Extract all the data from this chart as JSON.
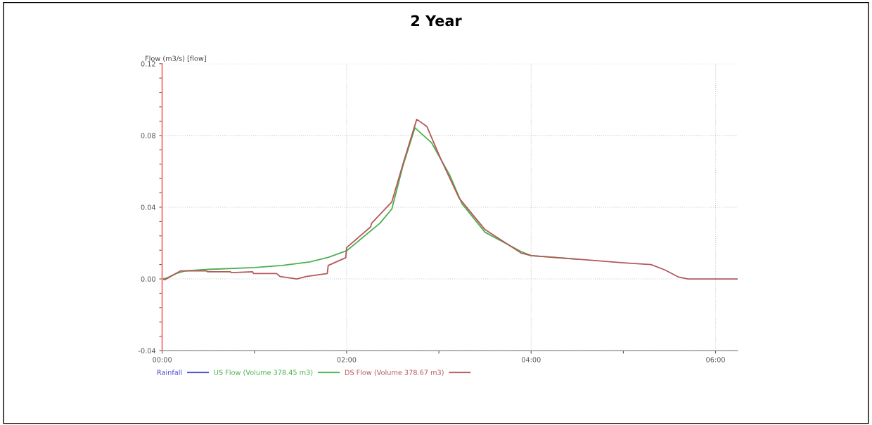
{
  "chart_data": {
    "type": "line",
    "title": "2 Year",
    "ylabel": "Flow (m3/s) [flow]",
    "xlim": [
      0,
      6.24
    ],
    "ylim": [
      -0.04,
      0.12
    ],
    "xticks": [
      {
        "value": 0,
        "label": "00:00"
      },
      {
        "value": 1,
        "label": null
      },
      {
        "value": 2,
        "label": "02:00"
      },
      {
        "value": 3,
        "label": null
      },
      {
        "value": 4,
        "label": "04:00"
      },
      {
        "value": 5,
        "label": null
      },
      {
        "value": 6,
        "label": "06:00"
      }
    ],
    "yticks": [
      {
        "value": -0.04,
        "label": "-0.04"
      },
      {
        "value": -0.032,
        "label": null
      },
      {
        "value": -0.024,
        "label": null
      },
      {
        "value": -0.016,
        "label": null
      },
      {
        "value": -0.008,
        "label": null
      },
      {
        "value": 0,
        "label": "0.00"
      },
      {
        "value": 0.008,
        "label": null
      },
      {
        "value": 0.016,
        "label": null
      },
      {
        "value": 0.024,
        "label": null
      },
      {
        "value": 0.032,
        "label": null
      },
      {
        "value": 0.04,
        "label": "0.04"
      },
      {
        "value": 0.048,
        "label": null
      },
      {
        "value": 0.056,
        "label": null
      },
      {
        "value": 0.064,
        "label": null
      },
      {
        "value": 0.072,
        "label": null
      },
      {
        "value": 0.08,
        "label": "0.08"
      },
      {
        "value": 0.088,
        "label": null
      },
      {
        "value": 0.096,
        "label": null
      },
      {
        "value": 0.104,
        "label": null
      },
      {
        "value": 0.112,
        "label": null
      },
      {
        "value": 0.12,
        "label": "0.12"
      }
    ],
    "grid": true,
    "legend": "bottom",
    "line_style": "solid",
    "marker": "none",
    "series": [
      {
        "name": "Rainfall",
        "color": "#4a4ac8"
      },
      {
        "name": "US Flow (Volume 378.45 m3)",
        "color": "#4cb050",
        "x": [
          0,
          0.05,
          0.15,
          0.25,
          0.5,
          1.0,
          1.3,
          1.6,
          1.8,
          2.0,
          2.36,
          2.49,
          2.61,
          2.74,
          2.92,
          3.12,
          3.25,
          3.5,
          3.89,
          4.0,
          4.5
        ],
        "values": [
          0,
          0.0005,
          0.003,
          0.0045,
          0.0053,
          0.0063,
          0.0075,
          0.0095,
          0.012,
          0.0157,
          0.031,
          0.039,
          0.063,
          0.0843,
          0.076,
          0.0576,
          0.042,
          0.026,
          0.0153,
          0.013,
          0.011
        ]
      },
      {
        "name": "DS Flow (Volume 378.67 m3)",
        "color": "#b5585a",
        "x": [
          0,
          0.03,
          0.2,
          0.48,
          0.49,
          0.74,
          0.75,
          0.98,
          0.99,
          1.24,
          1.28,
          1.46,
          1.56,
          1.79,
          1.8,
          1.99,
          2.0,
          2.26,
          2.27,
          2.49,
          2.61,
          2.76,
          2.87,
          3.02,
          3.22,
          3.5,
          3.89,
          4.0,
          4.5,
          5.0,
          5.3,
          5.45,
          5.6,
          5.7,
          6.24
        ],
        "values": [
          0,
          -0.0005,
          0.0045,
          0.0045,
          0.004,
          0.004,
          0.0035,
          0.004,
          0.003,
          0.003,
          0.0013,
          0.0,
          0.0013,
          0.003,
          0.0075,
          0.0118,
          0.0175,
          0.029,
          0.031,
          0.043,
          0.064,
          0.089,
          0.085,
          0.067,
          0.045,
          0.0275,
          0.0145,
          0.013,
          0.011,
          0.009,
          0.008,
          0.005,
          0.001,
          0,
          0
        ]
      }
    ]
  }
}
